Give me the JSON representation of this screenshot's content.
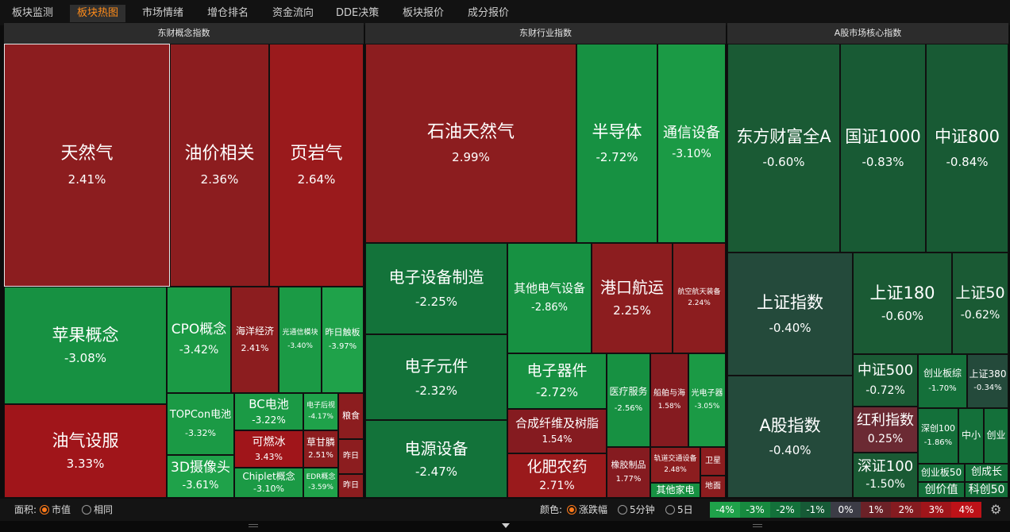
{
  "tabs": [
    {
      "label": "板块监测",
      "active": false
    },
    {
      "label": "板块热图",
      "active": true
    },
    {
      "label": "市场情绪",
      "active": false
    },
    {
      "label": "增仓排名",
      "active": false
    },
    {
      "label": "资金流向",
      "active": false
    },
    {
      "label": "DDE决策",
      "active": false
    },
    {
      "label": "板块报价",
      "active": false
    },
    {
      "label": "成分报价",
      "active": false
    }
  ],
  "panels": [
    {
      "title": "东财概念指数"
    },
    {
      "title": "东财行业指数"
    },
    {
      "title": "A股市场核心指数"
    }
  ],
  "colors": {
    "up_strong": "#a0151a",
    "up_mid": "#8c1d1f",
    "up_weak": "#6b2a33",
    "down_strong": "#1fa24a",
    "down_mid": "#168a3c",
    "down_weak": "#1a5f36",
    "down_pale": "#234a3a",
    "accent": "#ff7a1a"
  },
  "tiles": [
    {
      "name": "天然气",
      "pct": "2.41%"
    },
    {
      "name": "油价相关",
      "pct": "2.36%"
    },
    {
      "name": "页岩气",
      "pct": "2.64%"
    },
    {
      "name": "苹果概念",
      "pct": "-3.08%"
    },
    {
      "name": "CPO概念",
      "pct": "-3.42%"
    },
    {
      "name": "海洋经济",
      "pct": "2.41%"
    },
    {
      "name": "光通信模块",
      "pct": "-3.40%"
    },
    {
      "name": "昨日触板",
      "pct": "-3.97%"
    },
    {
      "name": "油气设服",
      "pct": "3.33%"
    },
    {
      "name": "TOPCon电池",
      "pct": "-3.32%"
    },
    {
      "name": "BC电池",
      "pct": "-3.22%"
    },
    {
      "name": "电子后视",
      "pct": "-4.17%"
    },
    {
      "name": "粮食",
      "pct": ""
    },
    {
      "name": "可燃冰",
      "pct": "3.43%"
    },
    {
      "name": "草甘膦",
      "pct": "2.51%"
    },
    {
      "name": "昨日",
      "pct": ""
    },
    {
      "name": "3D摄像头",
      "pct": "-3.61%"
    },
    {
      "name": "Chiplet概念",
      "pct": "-3.10%"
    },
    {
      "name": "EDR概念",
      "pct": "-3.59%"
    },
    {
      "name": "昨日",
      "pct": ""
    },
    {
      "name": "石油天然气",
      "pct": "2.99%"
    },
    {
      "name": "半导体",
      "pct": "-2.72%"
    },
    {
      "name": "通信设备",
      "pct": "-3.10%"
    },
    {
      "name": "电子设备制造",
      "pct": "-2.25%"
    },
    {
      "name": "其他电气设备",
      "pct": "-2.86%"
    },
    {
      "name": "港口航运",
      "pct": "2.25%"
    },
    {
      "name": "航空航天装备",
      "pct": "2.24%"
    },
    {
      "name": "电子元件",
      "pct": "-2.32%"
    },
    {
      "name": "电子器件",
      "pct": "-2.72%"
    },
    {
      "name": "医疗服务",
      "pct": "-2.56%"
    },
    {
      "name": "船舶与海",
      "pct": "1.58%"
    },
    {
      "name": "光电子器",
      "pct": "-3.05%"
    },
    {
      "name": "合成纤维及树脂",
      "pct": "1.54%"
    },
    {
      "name": "电源设备",
      "pct": "-2.47%"
    },
    {
      "name": "化肥农药",
      "pct": "2.71%"
    },
    {
      "name": "橡胶制品",
      "pct": "1.77%"
    },
    {
      "name": "轨道交通设备",
      "pct": "2.48%"
    },
    {
      "name": "卫星",
      "pct": ""
    },
    {
      "name": "其他家电",
      "pct": ""
    },
    {
      "name": "地面",
      "pct": ""
    },
    {
      "name": "东方财富全A",
      "pct": "-0.60%"
    },
    {
      "name": "国证1000",
      "pct": "-0.83%"
    },
    {
      "name": "中证800",
      "pct": "-0.84%"
    },
    {
      "name": "上证指数",
      "pct": "-0.40%"
    },
    {
      "name": "上证180",
      "pct": "-0.60%"
    },
    {
      "name": "上证50",
      "pct": "-0.62%"
    },
    {
      "name": "A股指数",
      "pct": "-0.40%"
    },
    {
      "name": "中证500",
      "pct": "-0.72%"
    },
    {
      "name": "创业板综",
      "pct": "-1.70%"
    },
    {
      "name": "上证380",
      "pct": "-0.34%"
    },
    {
      "name": "红利指数",
      "pct": "0.25%"
    },
    {
      "name": "深创100",
      "pct": "-1.86%"
    },
    {
      "name": "中小",
      "pct": ""
    },
    {
      "name": "创业",
      "pct": ""
    },
    {
      "name": "深证100",
      "pct": "-1.50%"
    },
    {
      "name": "创业板50",
      "pct": ""
    },
    {
      "name": "创成长",
      "pct": ""
    },
    {
      "name": "创价值",
      "pct": ""
    },
    {
      "name": "科创50",
      "pct": ""
    }
  ],
  "statusbar": {
    "area_label": "面积:",
    "area_options": [
      {
        "label": "市值",
        "on": true
      },
      {
        "label": "相同",
        "on": false
      }
    ],
    "color_label": "颜色:",
    "color_options": [
      {
        "label": "涨跌幅",
        "on": true
      },
      {
        "label": "5分钟",
        "on": false
      },
      {
        "label": "5日",
        "on": false
      }
    ],
    "legend": [
      {
        "label": "-4%",
        "color": "#1fa24a"
      },
      {
        "label": "-3%",
        "color": "#178a3f"
      },
      {
        "label": "-2%",
        "color": "#13713a"
      },
      {
        "label": "-1%",
        "color": "#165a36"
      },
      {
        "label": "0%",
        "color": "#3c3c46"
      },
      {
        "label": "1%",
        "color": "#6b2127"
      },
      {
        "label": "2%",
        "color": "#851b20"
      },
      {
        "label": "3%",
        "color": "#a0151a"
      },
      {
        "label": "4%",
        "color": "#bd1218"
      }
    ],
    "settings_icon": "gear-icon"
  }
}
